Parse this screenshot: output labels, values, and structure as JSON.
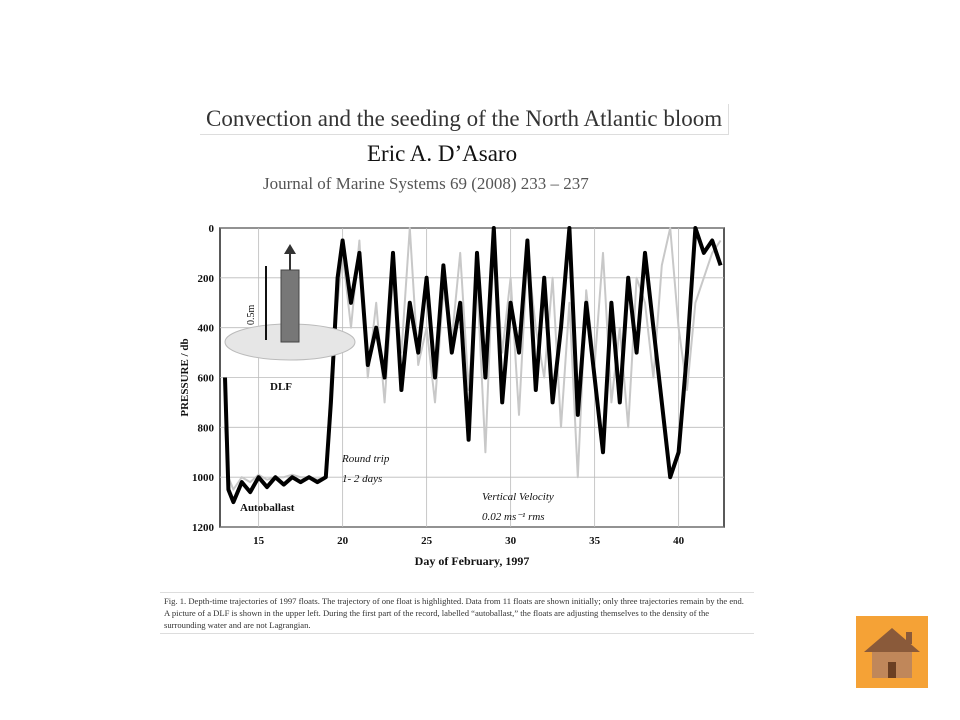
{
  "header": {
    "title": "Convection and the seeding of the North Atlantic bloom",
    "author": "Eric A. D’Asaro",
    "journal": "Journal of Marine Systems 69 (2008) 233 – 237"
  },
  "chart_data": {
    "type": "line",
    "y_inverted": true,
    "grid": true,
    "ylabel": "PRESSURE / db",
    "xlabel": "Day of February, 1997",
    "annotations": [
      "0.5m",
      "DLF",
      "Round trip",
      "1- 2 days",
      "Vertical Velocity",
      "0.02 ms⁻¹ rms",
      "Autoballast"
    ],
    "xlim": [
      12.7,
      42.7
    ],
    "ylim": [
      1200,
      0
    ],
    "xticks": [
      15,
      20,
      25,
      30,
      35,
      40
    ],
    "yticks": [
      0,
      200,
      400,
      600,
      800,
      1000,
      1200
    ],
    "x": [
      13,
      13.2,
      13.5,
      14,
      14.5,
      15,
      15.5,
      16,
      16.5,
      17,
      17.5,
      18,
      18.5,
      19,
      19.3,
      19.7,
      20,
      20.5,
      21,
      21.5,
      22,
      22.5,
      23,
      23.5,
      24,
      24.5,
      25,
      25.5,
      26,
      26.5,
      27,
      27.5,
      28,
      28.5,
      29,
      29.5,
      30,
      30.5,
      31,
      31.5,
      32,
      32.5,
      33,
      33.5,
      34,
      34.5,
      35,
      35.5,
      36,
      36.5,
      37,
      37.5,
      38,
      38.5,
      39,
      39.5,
      40,
      40.5,
      41,
      41.5,
      42,
      42.5
    ],
    "series": [
      {
        "color": "#c8c8c8",
        "width": 2,
        "values": [
          800,
          1000,
          1050,
          1000,
          1020,
          990,
          1010,
          1000,
          1000,
          990,
          1000,
          1000,
          1010,
          1000,
          600,
          300,
          100,
          400,
          50,
          600,
          300,
          700,
          200,
          500,
          0,
          550,
          400,
          700,
          250,
          450,
          100,
          650,
          200,
          900,
          50,
          500,
          200,
          750,
          100,
          400,
          600,
          200,
          800,
          300,
          1000,
          250,
          550,
          100,
          700,
          400,
          800,
          200,
          300,
          600,
          150,
          0,
          400,
          650,
          300,
          200,
          100,
          50
        ]
      },
      {
        "color": "#000000",
        "width": 4,
        "values": [
          600,
          1050,
          1100,
          1020,
          1060,
          1000,
          1040,
          1000,
          1030,
          1000,
          1020,
          1000,
          1020,
          1000,
          700,
          200,
          50,
          300,
          100,
          550,
          400,
          600,
          100,
          650,
          300,
          500,
          200,
          600,
          150,
          500,
          300,
          850,
          100,
          600,
          0,
          700,
          300,
          500,
          50,
          650,
          200,
          700,
          400,
          0,
          750,
          300,
          600,
          900,
          300,
          700,
          200,
          500,
          100,
          400,
          700,
          1000,
          900,
          500,
          0,
          100,
          50,
          150
        ]
      }
    ]
  },
  "caption": "Fig. 1. Depth-time trajectories of 1997 floats. The trajectory of one float is highlighted. Data from 11 floats are shown initially; only three trajectories remain by the end. A picture of a DLF is shown in the upper left. During the first part of the record, labelled “autoballast,” the floats are adjusting themselves to the density of the surrounding water and are not Lagrangian."
}
